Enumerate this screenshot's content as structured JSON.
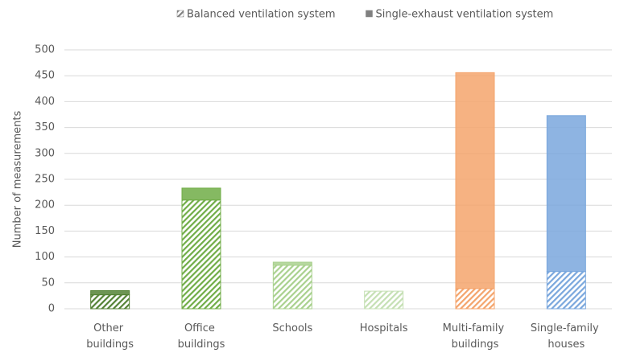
{
  "chart_data": {
    "type": "stacked_bar",
    "y_label": "Number of measurements",
    "categories": [
      "Other buildings",
      "Office buildings",
      "Schools",
      "Hospitals",
      "Multi-family buildings",
      "Single-family houses"
    ],
    "category_colors": [
      "#548235",
      "#70ad47",
      "#a9d18e",
      "#c5e0b4",
      "#f4a46c",
      "#7aa7dd"
    ],
    "series": [
      {
        "name": "Balanced ventilation system",
        "color": "#808080",
        "pattern": "hatched",
        "values": [
          27,
          210,
          84,
          34,
          39,
          72
        ]
      },
      {
        "name": "Single-exhaust ventilation system",
        "color": "#808080",
        "pattern": "solid",
        "values": [
          8,
          23,
          6,
          0,
          417,
          301
        ]
      }
    ],
    "ylim": [
      0,
      500
    ],
    "yticks": [
      0,
      50,
      100,
      150,
      200,
      250,
      300,
      350,
      400,
      450,
      500
    ],
    "grid": true
  }
}
